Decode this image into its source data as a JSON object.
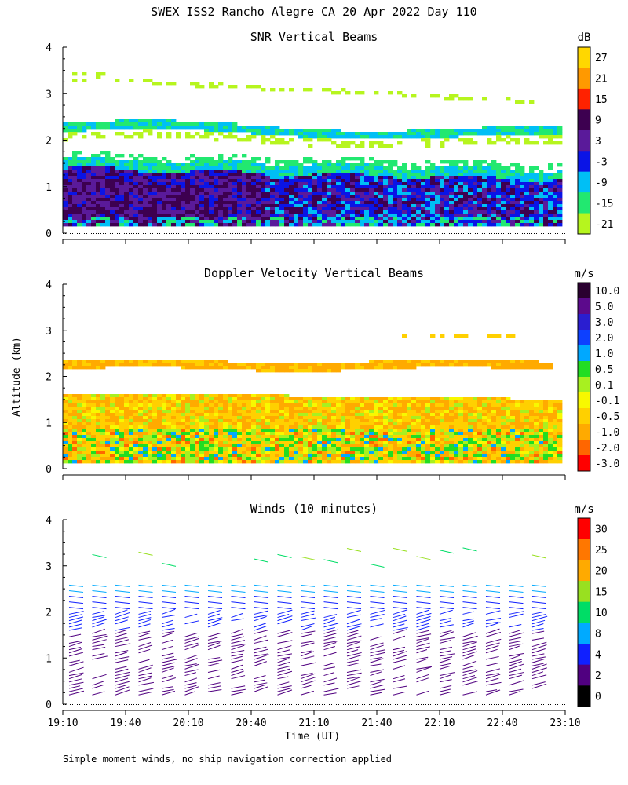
{
  "title": "SWEX ISS2 Rancho Alegre CA  20 Apr 2022 Day 110",
  "footnote": "Simple moment winds, no ship navigation correction applied",
  "y_axis_label": "Altitude (km)",
  "x_axis_label": "Time (UT)",
  "x_tick_labels": [
    "19:10",
    "19:40",
    "20:10",
    "20:40",
    "21:10",
    "21:40",
    "22:10",
    "22:40",
    "23:10"
  ],
  "y_tick_labels": [
    "0",
    "1",
    "2",
    "3",
    "4"
  ],
  "chart_data": [
    {
      "type": "heatmap",
      "title": "SNR Vertical Beams",
      "units": "dB",
      "xlabel": "",
      "ylabel": "Altitude (km)",
      "ylim": [
        0,
        4
      ],
      "colorbar": {
        "labels": [
          "27",
          "21",
          "15",
          "9",
          "3",
          "-3",
          "-9",
          "-15",
          "-21"
        ],
        "colors": [
          "#ffd700",
          "#ff9900",
          "#ff2200",
          "#3d0050",
          "#5a1a9a",
          "#0a14e6",
          "#00bff5",
          "#22e870",
          "#b6f51e"
        ]
      }
    },
    {
      "type": "heatmap",
      "title": "Doppler Velocity Vertical Beams",
      "units": "m/s",
      "xlabel": "",
      "ylabel": "Altitude (km)",
      "ylim": [
        0,
        4
      ],
      "colorbar": {
        "labels": [
          "10.0",
          "5.0",
          "3.0",
          "2.0",
          "1.0",
          "0.5",
          "0.1",
          "-0.1",
          "-0.5",
          "-1.0",
          "-2.0",
          "-3.0"
        ],
        "colors": [
          "#2a0030",
          "#5c0a8c",
          "#2a1ed0",
          "#0d40ff",
          "#00a8ff",
          "#22dd22",
          "#a8f020",
          "#f8f800",
          "#ffd000",
          "#ffaa00",
          "#ff6600",
          "#ff0000"
        ]
      }
    },
    {
      "type": "scatter",
      "title": "Winds (10 minutes)",
      "units": "m/s",
      "xlabel": "Time (UT)",
      "ylabel": "Altitude (km)",
      "ylim": [
        0,
        4
      ],
      "colorbar": {
        "labels": [
          "30",
          "25",
          "20",
          "15",
          "10",
          "8",
          "4",
          "2",
          "0"
        ],
        "colors": [
          "#ff0000",
          "#ff7700",
          "#ffaa00",
          "#99e020",
          "#00dd66",
          "#00aaff",
          "#1020ff",
          "#500080",
          "#000000"
        ]
      }
    }
  ]
}
